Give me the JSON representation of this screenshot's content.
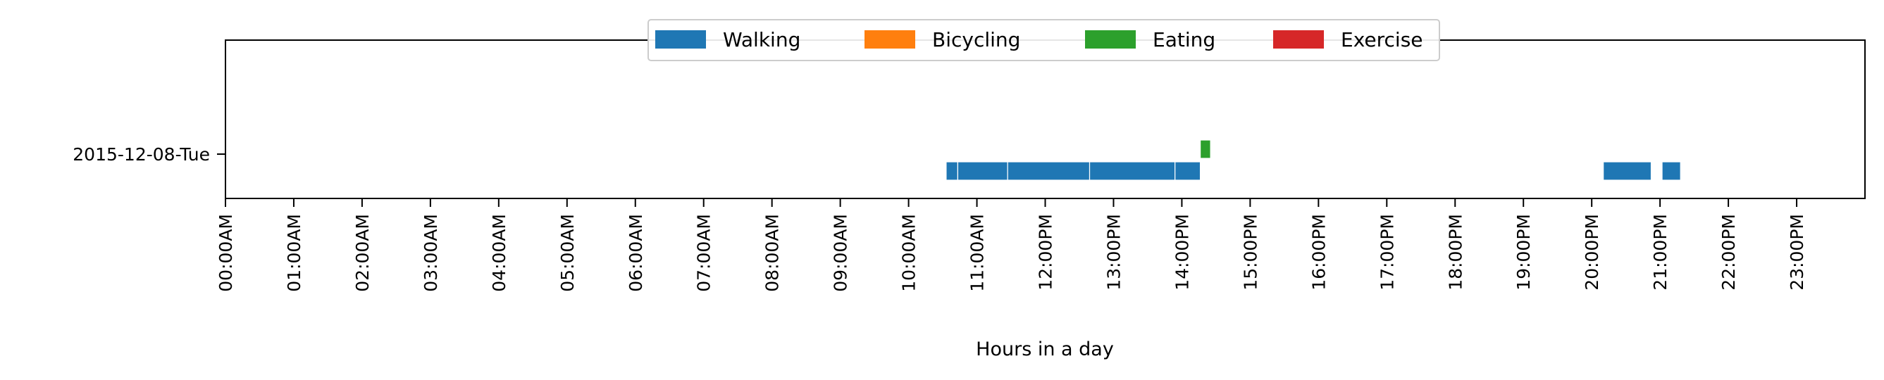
{
  "chart_data": {
    "type": "bar",
    "orientation": "horizontal-timeline",
    "title": "",
    "xlabel": "Hours in a day",
    "ylabel": "",
    "xlim": [
      0,
      24
    ],
    "grid": false,
    "legend_placement": "top-center",
    "day_labels": [
      "2015-12-08-Tue"
    ],
    "x_tick_labels": [
      "00:00AM",
      "01:00AM",
      "02:00AM",
      "03:00AM",
      "04:00AM",
      "05:00AM",
      "06:00AM",
      "07:00AM",
      "08:00AM",
      "09:00AM",
      "10:00AM",
      "11:00AM",
      "12:00PM",
      "13:00PM",
      "14:00PM",
      "15:00PM",
      "16:00PM",
      "17:00PM",
      "18:00PM",
      "19:00PM",
      "20:00PM",
      "21:00PM",
      "22:00PM",
      "23:00PM"
    ],
    "series": [
      {
        "name": "Walking",
        "color": "#1f77b4",
        "lane": "lower",
        "segments": [
          [
            10.55,
            10.72
          ],
          [
            10.72,
            11.45
          ],
          [
            11.45,
            12.65
          ],
          [
            12.65,
            13.9
          ],
          [
            13.9,
            14.27
          ],
          [
            20.17,
            20.87
          ],
          [
            21.03,
            21.3
          ]
        ]
      },
      {
        "name": "Bicycling",
        "color": "#ff7f0e",
        "lane": "lower",
        "segments": []
      },
      {
        "name": "Eating",
        "color": "#2ca02c",
        "lane": "upper",
        "segments": [
          [
            14.27,
            14.42
          ]
        ]
      },
      {
        "name": "Exercise",
        "color": "#d62728",
        "lane": "lower",
        "segments": []
      }
    ]
  }
}
